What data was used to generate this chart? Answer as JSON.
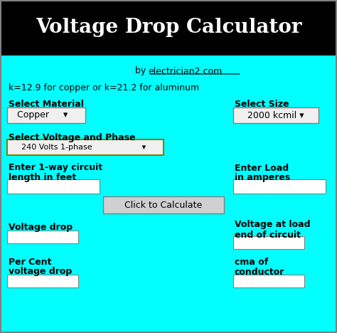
{
  "title": "Voltage Drop Calculator",
  "title_bg": "#000000",
  "title_color": "#ffffff",
  "body_bg": "#00ffff",
  "formula_text": "k=12.9 for copper or k=21.2 for aluminum",
  "select_material_label": "Select Material",
  "copper_dropdown": "Copper     ▾",
  "select_size_label": "Select Size",
  "size_dropdown": "2000 kcmil ▾",
  "voltage_phase_label": "Select Voltage and Phase",
  "voltage_dropdown": "240 Volts 1-phase                    ▾",
  "circuit_label1": "Enter 1-way circuit",
  "circuit_label2": "length in feet",
  "load_label1": "Enter Load",
  "load_label2": "in amperes",
  "button_text": "Click to Calculate",
  "voltage_drop_label": "Voltage drop",
  "voltage_at_load_label1": "Voltage at load",
  "voltage_at_load_label2": "end of circuit",
  "per_cent_label1": "Per Cent",
  "per_cent_label2": "voltage drop",
  "cma_label1": "cma of",
  "cma_label2": "conductor",
  "dropdown_color": "#f0f0f0",
  "button_color": "#d0d0d0",
  "fig_width": 4.74,
  "fig_height": 4.68
}
